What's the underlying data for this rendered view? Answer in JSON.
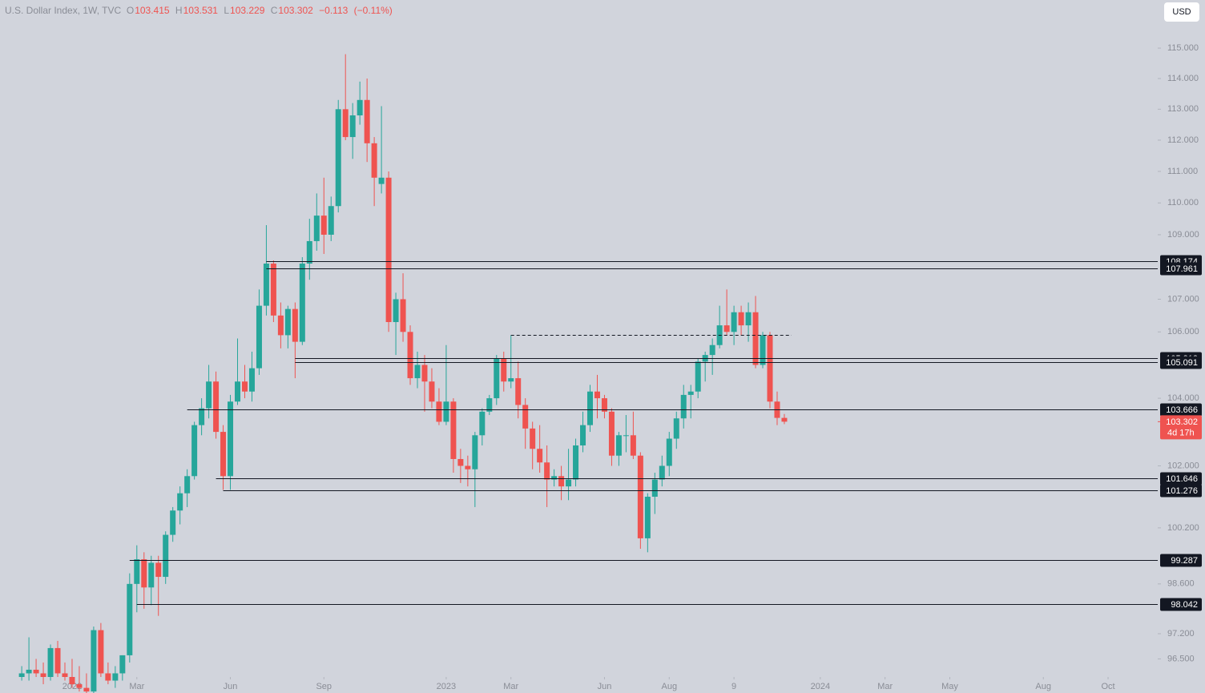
{
  "chart_data": {
    "type": "candlestick",
    "title": "U.S. Dollar Index, 1W, TVC",
    "ohlc_keys": [
      "O",
      "H",
      "L",
      "C"
    ],
    "change": "−0.113",
    "change_pct": "(−0.11%)",
    "currency": "USD",
    "countdown": "4d 17h",
    "log_scale": true,
    "up_color": "#26a69a",
    "down_color": "#ef5350",
    "xlim": [
      -10.02,
      150.9
    ],
    "xticks": [
      {
        "value": 0,
        "label": "2022"
      },
      {
        "value": 9,
        "label": "Mar"
      },
      {
        "value": 22,
        "label": "Jun"
      },
      {
        "value": 35,
        "label": "Sep"
      },
      {
        "value": 52,
        "label": "2023"
      },
      {
        "value": 61,
        "label": "Mar"
      },
      {
        "value": 74,
        "label": "Jun"
      },
      {
        "value": 83,
        "label": "Aug"
      },
      {
        "value": 92,
        "label": "9"
      },
      {
        "value": 104,
        "label": "2024"
      },
      {
        "value": 113,
        "label": "Mar"
      },
      {
        "value": 122,
        "label": "May"
      },
      {
        "value": 135,
        "label": "Aug"
      },
      {
        "value": 144,
        "label": "Oct"
      }
    ],
    "ylim": [
      96.0,
      116.6
    ],
    "yticks": [
      {
        "value": 115,
        "label": "115.000"
      },
      {
        "value": 114,
        "label": "114.000"
      },
      {
        "value": 113,
        "label": "113.000"
      },
      {
        "value": 112,
        "label": "112.000"
      },
      {
        "value": 111,
        "label": "111.000"
      },
      {
        "value": 110,
        "label": "110.000"
      },
      {
        "value": 109,
        "label": "109.000"
      },
      {
        "value": 107,
        "label": "107.000"
      },
      {
        "value": 106,
        "label": "106.000"
      },
      {
        "value": 104,
        "label": "104.000"
      },
      {
        "value": 102,
        "label": "102.000"
      },
      {
        "value": 100.2,
        "label": "100.200"
      },
      {
        "value": 98.6,
        "label": "98.600"
      },
      {
        "value": 97.2,
        "label": "97.200"
      },
      {
        "value": 96.5,
        "label": "96.500"
      }
    ],
    "levels": [
      {
        "value": 108.174,
        "start": 27
      },
      {
        "value": 107.961,
        "start": 27
      },
      {
        "value": 105.212,
        "start": 31
      },
      {
        "value": 105.091,
        "start": 31
      },
      {
        "value": 103.666,
        "start": 16
      },
      {
        "value": 101.646,
        "start": 20
      },
      {
        "value": 101.276,
        "start": 21
      },
      {
        "value": 99.287,
        "start": 8
      },
      {
        "value": 98.042,
        "start": 9
      }
    ],
    "dashed_levels": [
      {
        "value": 105.9,
        "start": 61,
        "end": 100
      }
    ],
    "x": [
      -7,
      -6,
      -5,
      -4,
      -3,
      -2,
      -1,
      0,
      1,
      2,
      3,
      4,
      5,
      6,
      7,
      8,
      9,
      10,
      11,
      12,
      13,
      14,
      15,
      16,
      17,
      18,
      19,
      20,
      21,
      22,
      23,
      24,
      25,
      26,
      27,
      28,
      29,
      30,
      31,
      32,
      33,
      34,
      35,
      36,
      37,
      38,
      39,
      40,
      41,
      42,
      43,
      44,
      45,
      46,
      47,
      48,
      49,
      50,
      51,
      52,
      53,
      54,
      55,
      56,
      57,
      58,
      59,
      60,
      61,
      62,
      63,
      64,
      65,
      66,
      67,
      68,
      69,
      70,
      71,
      72,
      73,
      74,
      75,
      76,
      77,
      78,
      79,
      80,
      81,
      82,
      83,
      84,
      85,
      86,
      87,
      88,
      89,
      90,
      91,
      92,
      93,
      94,
      95,
      96,
      97,
      98,
      99
    ],
    "open": [
      96.0,
      96.1,
      96.2,
      96.1,
      96.0,
      96.8,
      96.1,
      96.0,
      95.8,
      95.7,
      95.6,
      97.3,
      96.1,
      95.9,
      96.1,
      96.6,
      98.6,
      99.3,
      98.5,
      99.2,
      98.8,
      100.0,
      100.7,
      101.2,
      101.7,
      103.2,
      103.7,
      104.5,
      103.0,
      101.7,
      103.9,
      104.5,
      104.2,
      104.9,
      106.8,
      108.1,
      106.5,
      105.9,
      106.7,
      105.7,
      108.1,
      108.8,
      109.6,
      109.0,
      109.9,
      113.0,
      112.1,
      112.8,
      113.3,
      111.9,
      110.6,
      110.8,
      106.3,
      107.0,
      106.0,
      104.6,
      105.0,
      104.5,
      103.9,
      103.3,
      103.9,
      102.2,
      102.0,
      101.9,
      102.9,
      103.6,
      104.0,
      105.2,
      104.5,
      104.6,
      103.8,
      103.1,
      102.5,
      102.1,
      101.6,
      101.7,
      101.4,
      101.6,
      102.6,
      103.2,
      104.2,
      104.0,
      103.6,
      102.3,
      102.9,
      102.9,
      102.3,
      99.9,
      101.1,
      101.6,
      102.0,
      102.8,
      103.4,
      104.1,
      104.2,
      105.1,
      105.3,
      105.6,
      106.2,
      106.0,
      106.6,
      106.2,
      106.6,
      105.0,
      105.9,
      103.9,
      103.415
    ],
    "high": [
      96.3,
      97.1,
      96.5,
      96.4,
      96.9,
      97.0,
      96.4,
      96.5,
      96.3,
      96.1,
      97.4,
      97.5,
      96.4,
      96.3,
      96.6,
      98.9,
      99.7,
      99.5,
      99.4,
      99.4,
      100.1,
      100.8,
      101.4,
      101.9,
      103.3,
      104.0,
      105.0,
      104.8,
      103.2,
      104.1,
      105.8,
      105.0,
      105.4,
      107.3,
      109.3,
      108.2,
      106.9,
      106.8,
      106.9,
      108.3,
      109.5,
      110.3,
      110.8,
      110.2,
      113.3,
      114.8,
      113.2,
      113.9,
      114.0,
      112.1,
      113.1,
      111.0,
      107.2,
      107.8,
      106.2,
      105.4,
      105.3,
      104.9,
      104.3,
      105.6,
      104.0,
      102.5,
      102.3,
      103.0,
      103.7,
      104.1,
      105.3,
      105.4,
      105.9,
      105.1,
      104.0,
      103.3,
      103.2,
      102.6,
      101.9,
      102.0,
      102.5,
      102.8,
      103.6,
      104.4,
      104.7,
      104.1,
      103.7,
      103.0,
      103.5,
      103.6,
      102.4,
      101.2,
      101.8,
      102.3,
      103.0,
      103.6,
      104.4,
      104.4,
      105.2,
      105.4,
      105.8,
      106.8,
      107.3,
      106.8,
      106.8,
      106.9,
      107.1,
      106.0,
      106.0,
      104.2,
      103.531
    ],
    "low": [
      95.9,
      95.9,
      96.0,
      95.8,
      95.9,
      96.0,
      95.9,
      95.7,
      95.6,
      95.5,
      95.5,
      96.0,
      95.8,
      95.7,
      95.9,
      96.4,
      97.8,
      97.9,
      98.0,
      97.7,
      98.6,
      99.8,
      100.3,
      100.8,
      101.6,
      102.9,
      103.4,
      102.8,
      101.3,
      101.3,
      103.8,
      104.0,
      103.9,
      104.7,
      106.5,
      106.3,
      105.5,
      105.5,
      104.6,
      105.6,
      107.6,
      108.5,
      108.4,
      108.8,
      109.7,
      112.0,
      111.4,
      112.5,
      111.3,
      109.9,
      110.3,
      106.0,
      105.3,
      105.7,
      104.4,
      104.3,
      103.6,
      103.7,
      103.2,
      103.2,
      101.8,
      101.5,
      101.4,
      100.8,
      102.6,
      103.5,
      103.8,
      104.2,
      104.3,
      103.4,
      102.5,
      101.9,
      101.8,
      100.8,
      101.4,
      101.0,
      101.0,
      101.4,
      102.4,
      103.0,
      103.4,
      103.4,
      102.0,
      102.0,
      102.4,
      102.2,
      99.6,
      99.5,
      100.6,
      101.4,
      101.7,
      102.5,
      103.1,
      103.4,
      104.0,
      104.5,
      104.7,
      105.5,
      105.9,
      105.6,
      105.9,
      105.7,
      104.9,
      104.9,
      103.7,
      103.2,
      103.229
    ],
    "close": [
      96.1,
      96.2,
      96.1,
      96.0,
      96.8,
      96.1,
      96.0,
      95.8,
      95.7,
      95.6,
      97.3,
      96.1,
      95.9,
      96.1,
      96.6,
      98.6,
      99.3,
      98.5,
      99.2,
      98.8,
      100.0,
      100.7,
      101.2,
      101.7,
      103.2,
      103.7,
      104.5,
      103.0,
      101.7,
      103.9,
      104.5,
      104.2,
      104.9,
      106.8,
      108.1,
      106.5,
      105.9,
      106.7,
      105.7,
      108.1,
      108.8,
      109.6,
      109.0,
      109.9,
      113.0,
      112.1,
      112.8,
      113.3,
      111.9,
      110.8,
      110.8,
      106.3,
      107.0,
      106.0,
      104.6,
      105.0,
      104.5,
      103.9,
      103.3,
      103.9,
      102.2,
      102.0,
      101.9,
      102.9,
      103.6,
      104.0,
      105.2,
      104.5,
      104.6,
      103.8,
      103.1,
      102.5,
      102.1,
      101.6,
      101.7,
      101.4,
      101.6,
      102.6,
      103.2,
      104.2,
      104.0,
      103.6,
      102.3,
      102.9,
      102.9,
      102.3,
      99.9,
      101.1,
      101.6,
      102.0,
      102.8,
      103.4,
      104.1,
      104.2,
      105.1,
      105.3,
      105.6,
      106.2,
      106.0,
      106.6,
      106.2,
      106.6,
      105.0,
      105.9,
      103.9,
      103.415,
      103.302
    ]
  }
}
